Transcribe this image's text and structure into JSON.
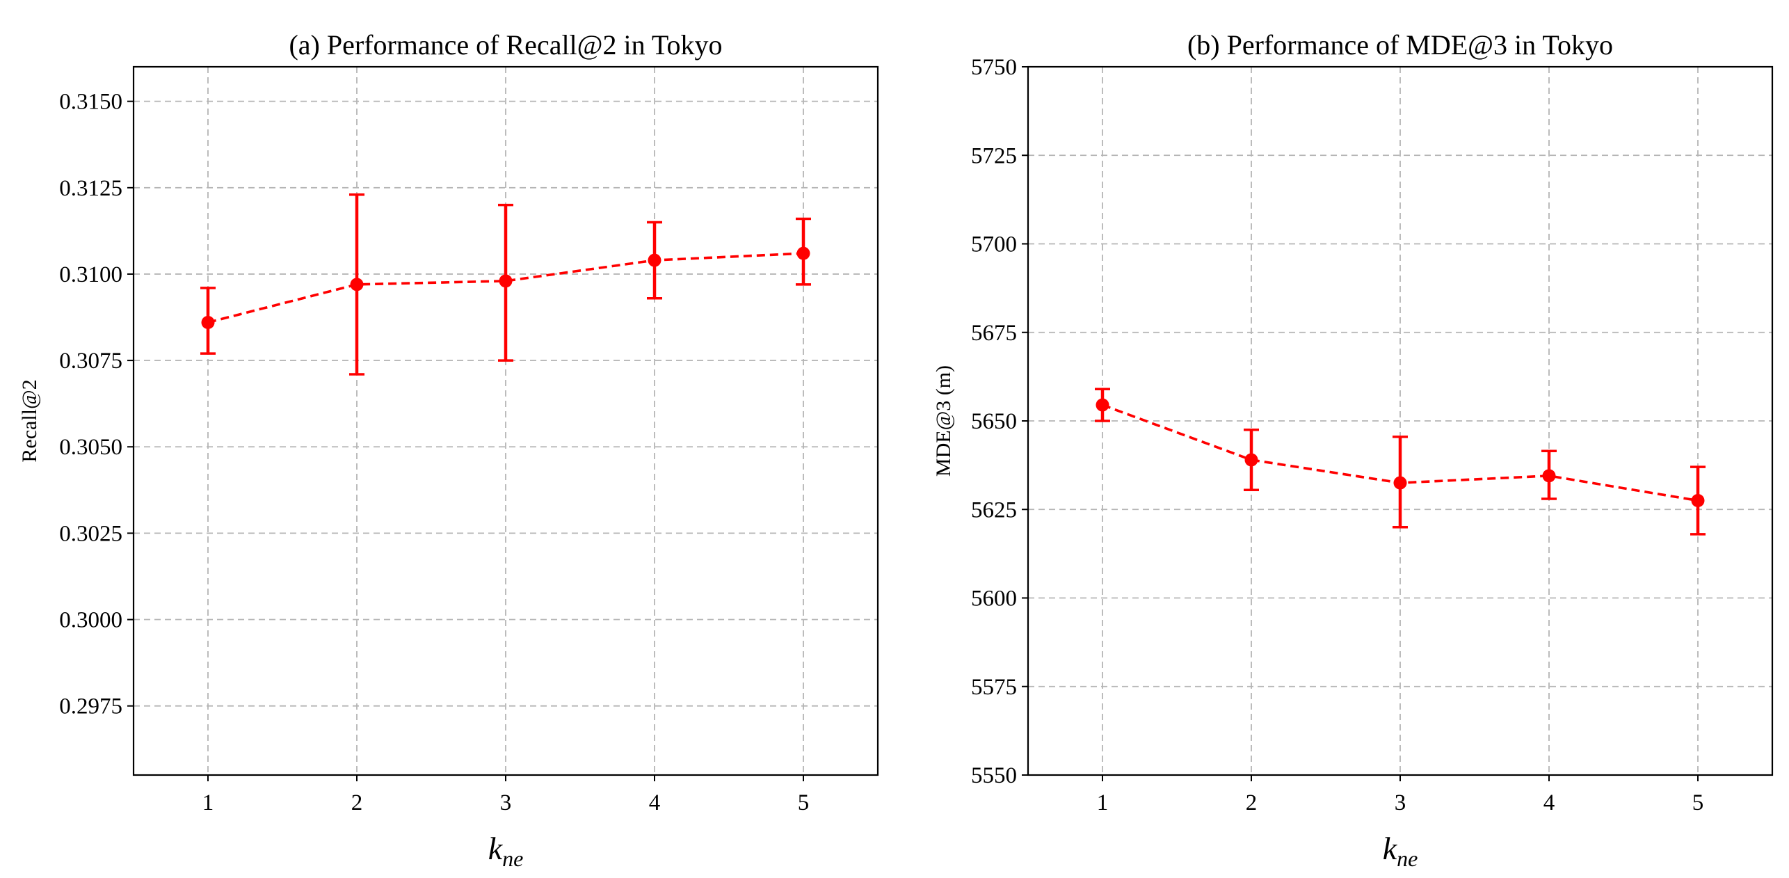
{
  "chart_data": [
    {
      "type": "line",
      "title": "(a) Performance of Recall@2 in Tokyo",
      "xlabel": "k",
      "xlabel_subscript": "ne",
      "ylabel": "Recall@2",
      "x": [
        1,
        2,
        3,
        4,
        5
      ],
      "xticks": [
        "1",
        "2",
        "3",
        "4",
        "5"
      ],
      "xlim": [
        0.5,
        5.5
      ],
      "ylim": [
        0.2955,
        0.316
      ],
      "yticks": [
        0.2975,
        0.3,
        0.3025,
        0.305,
        0.3075,
        0.31,
        0.3125,
        0.315
      ],
      "yticklabels": [
        "0.2975",
        "0.3000",
        "0.3025",
        "0.3050",
        "0.3075",
        "0.3100",
        "0.3125",
        "0.3150"
      ],
      "grid": true,
      "series": [
        {
          "name": "Recall@2",
          "color": "#ff0000",
          "linestyle": "dashed",
          "marker": "circle",
          "values": [
            0.3086,
            0.3097,
            0.3098,
            0.3104,
            0.3106
          ],
          "error_low": [
            0.3077,
            0.3071,
            0.3075,
            0.3093,
            0.3097
          ],
          "error_high": [
            0.3096,
            0.3123,
            0.312,
            0.3115,
            0.3116
          ]
        }
      ]
    },
    {
      "type": "line",
      "title": "(b) Performance of MDE@3 in Tokyo",
      "xlabel": "k",
      "xlabel_subscript": "ne",
      "ylabel": "MDE@3 (m)",
      "x": [
        1,
        2,
        3,
        4,
        5
      ],
      "xticks": [
        "1",
        "2",
        "3",
        "4",
        "5"
      ],
      "xlim": [
        0.5,
        5.5
      ],
      "ylim": [
        5550,
        5750
      ],
      "yticks": [
        5550,
        5575,
        5600,
        5625,
        5650,
        5675,
        5700,
        5725,
        5750
      ],
      "yticklabels": [
        "5550",
        "5575",
        "5600",
        "5625",
        "5650",
        "5675",
        "5700",
        "5725",
        "5750"
      ],
      "grid": true,
      "series": [
        {
          "name": "MDE@3",
          "color": "#ff0000",
          "linestyle": "dashed",
          "marker": "circle",
          "values": [
            5654.5,
            5639,
            5632.5,
            5634.5,
            5627.5
          ],
          "error_low": [
            5650,
            5630.5,
            5620,
            5628,
            5618
          ],
          "error_high": [
            5659,
            5647.5,
            5645.5,
            5641.5,
            5637
          ]
        }
      ]
    }
  ]
}
